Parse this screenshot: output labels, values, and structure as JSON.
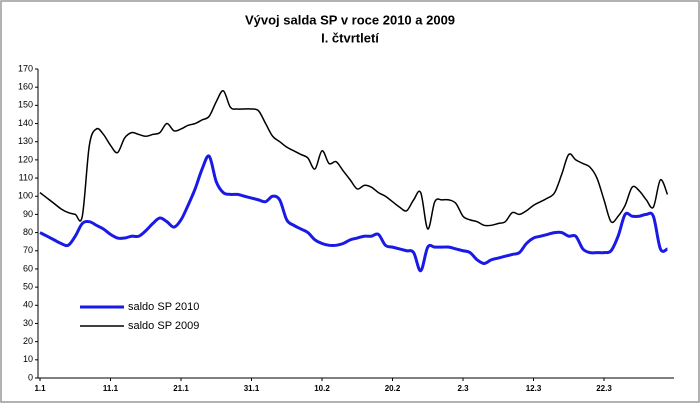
{
  "chart_data": {
    "type": "line",
    "title": "Vývoj salda SP v roce 2010 a 2009",
    "subtitle": "I. čtvrtletí",
    "categories": [
      "1.1",
      null,
      null,
      null,
      null,
      null,
      null,
      null,
      null,
      null,
      "11.1",
      null,
      null,
      null,
      null,
      null,
      null,
      null,
      null,
      null,
      "21.1",
      null,
      null,
      null,
      null,
      null,
      null,
      null,
      null,
      null,
      "31.1",
      null,
      null,
      null,
      null,
      null,
      null,
      null,
      null,
      null,
      "10.2",
      null,
      null,
      null,
      null,
      null,
      null,
      null,
      null,
      null,
      "20.2",
      null,
      null,
      null,
      null,
      null,
      null,
      null,
      null,
      null,
      "2.3",
      null,
      null,
      null,
      null,
      null,
      null,
      null,
      null,
      null,
      "12.3",
      null,
      null,
      null,
      null,
      null,
      null,
      null,
      null,
      null,
      "22.3",
      null,
      null,
      null,
      null,
      null,
      null,
      null,
      null,
      null
    ],
    "series": [
      {
        "name": "saldo SP 2010",
        "color": "#1a1ae6",
        "values": [
          80,
          78,
          76,
          74,
          73,
          78,
          85,
          86,
          84,
          82,
          79,
          77,
          77,
          78,
          78,
          81,
          85,
          88,
          86,
          83,
          87,
          95,
          104,
          115,
          122,
          108,
          102,
          101,
          101,
          100,
          99,
          98,
          97,
          100,
          98,
          87,
          84,
          82,
          80,
          76,
          74,
          73,
          73,
          74,
          76,
          77,
          78,
          78,
          79,
          73,
          72,
          71,
          70,
          69,
          59,
          72,
          72,
          72,
          72,
          71,
          70,
          69,
          65,
          63,
          65,
          66,
          67,
          68,
          69,
          74,
          77,
          78,
          79,
          80,
          80,
          78,
          78,
          71,
          69,
          69,
          69,
          70,
          78,
          90,
          89,
          89,
          90,
          89,
          71,
          71
        ]
      },
      {
        "name": "saldo SP 2009",
        "color": "#000000",
        "values": [
          102,
          99,
          96,
          93,
          91,
          90,
          89,
          128,
          137,
          134,
          128,
          124,
          132,
          135,
          134,
          133,
          134,
          135,
          140,
          136,
          137,
          139,
          140,
          142,
          144,
          152,
          158,
          149,
          148,
          148,
          148,
          147,
          140,
          133,
          130,
          127,
          125,
          123,
          121,
          115,
          125,
          118,
          119,
          114,
          109,
          104,
          106,
          105,
          102,
          100,
          97,
          94,
          92,
          98,
          102,
          82,
          97,
          98,
          98,
          96,
          89,
          87,
          86,
          84,
          84,
          85,
          86,
          91,
          90,
          92,
          95,
          97,
          99,
          102,
          112,
          123,
          120,
          118,
          116,
          110,
          98,
          86,
          89,
          95,
          105,
          103,
          98,
          94,
          109,
          101
        ]
      }
    ],
    "ylim": [
      0,
      170
    ],
    "yticks": [
      0,
      10,
      20,
      30,
      40,
      50,
      60,
      70,
      80,
      90,
      100,
      110,
      120,
      130,
      140,
      150,
      160,
      170
    ],
    "grid": false,
    "legend": "bottom-left"
  }
}
